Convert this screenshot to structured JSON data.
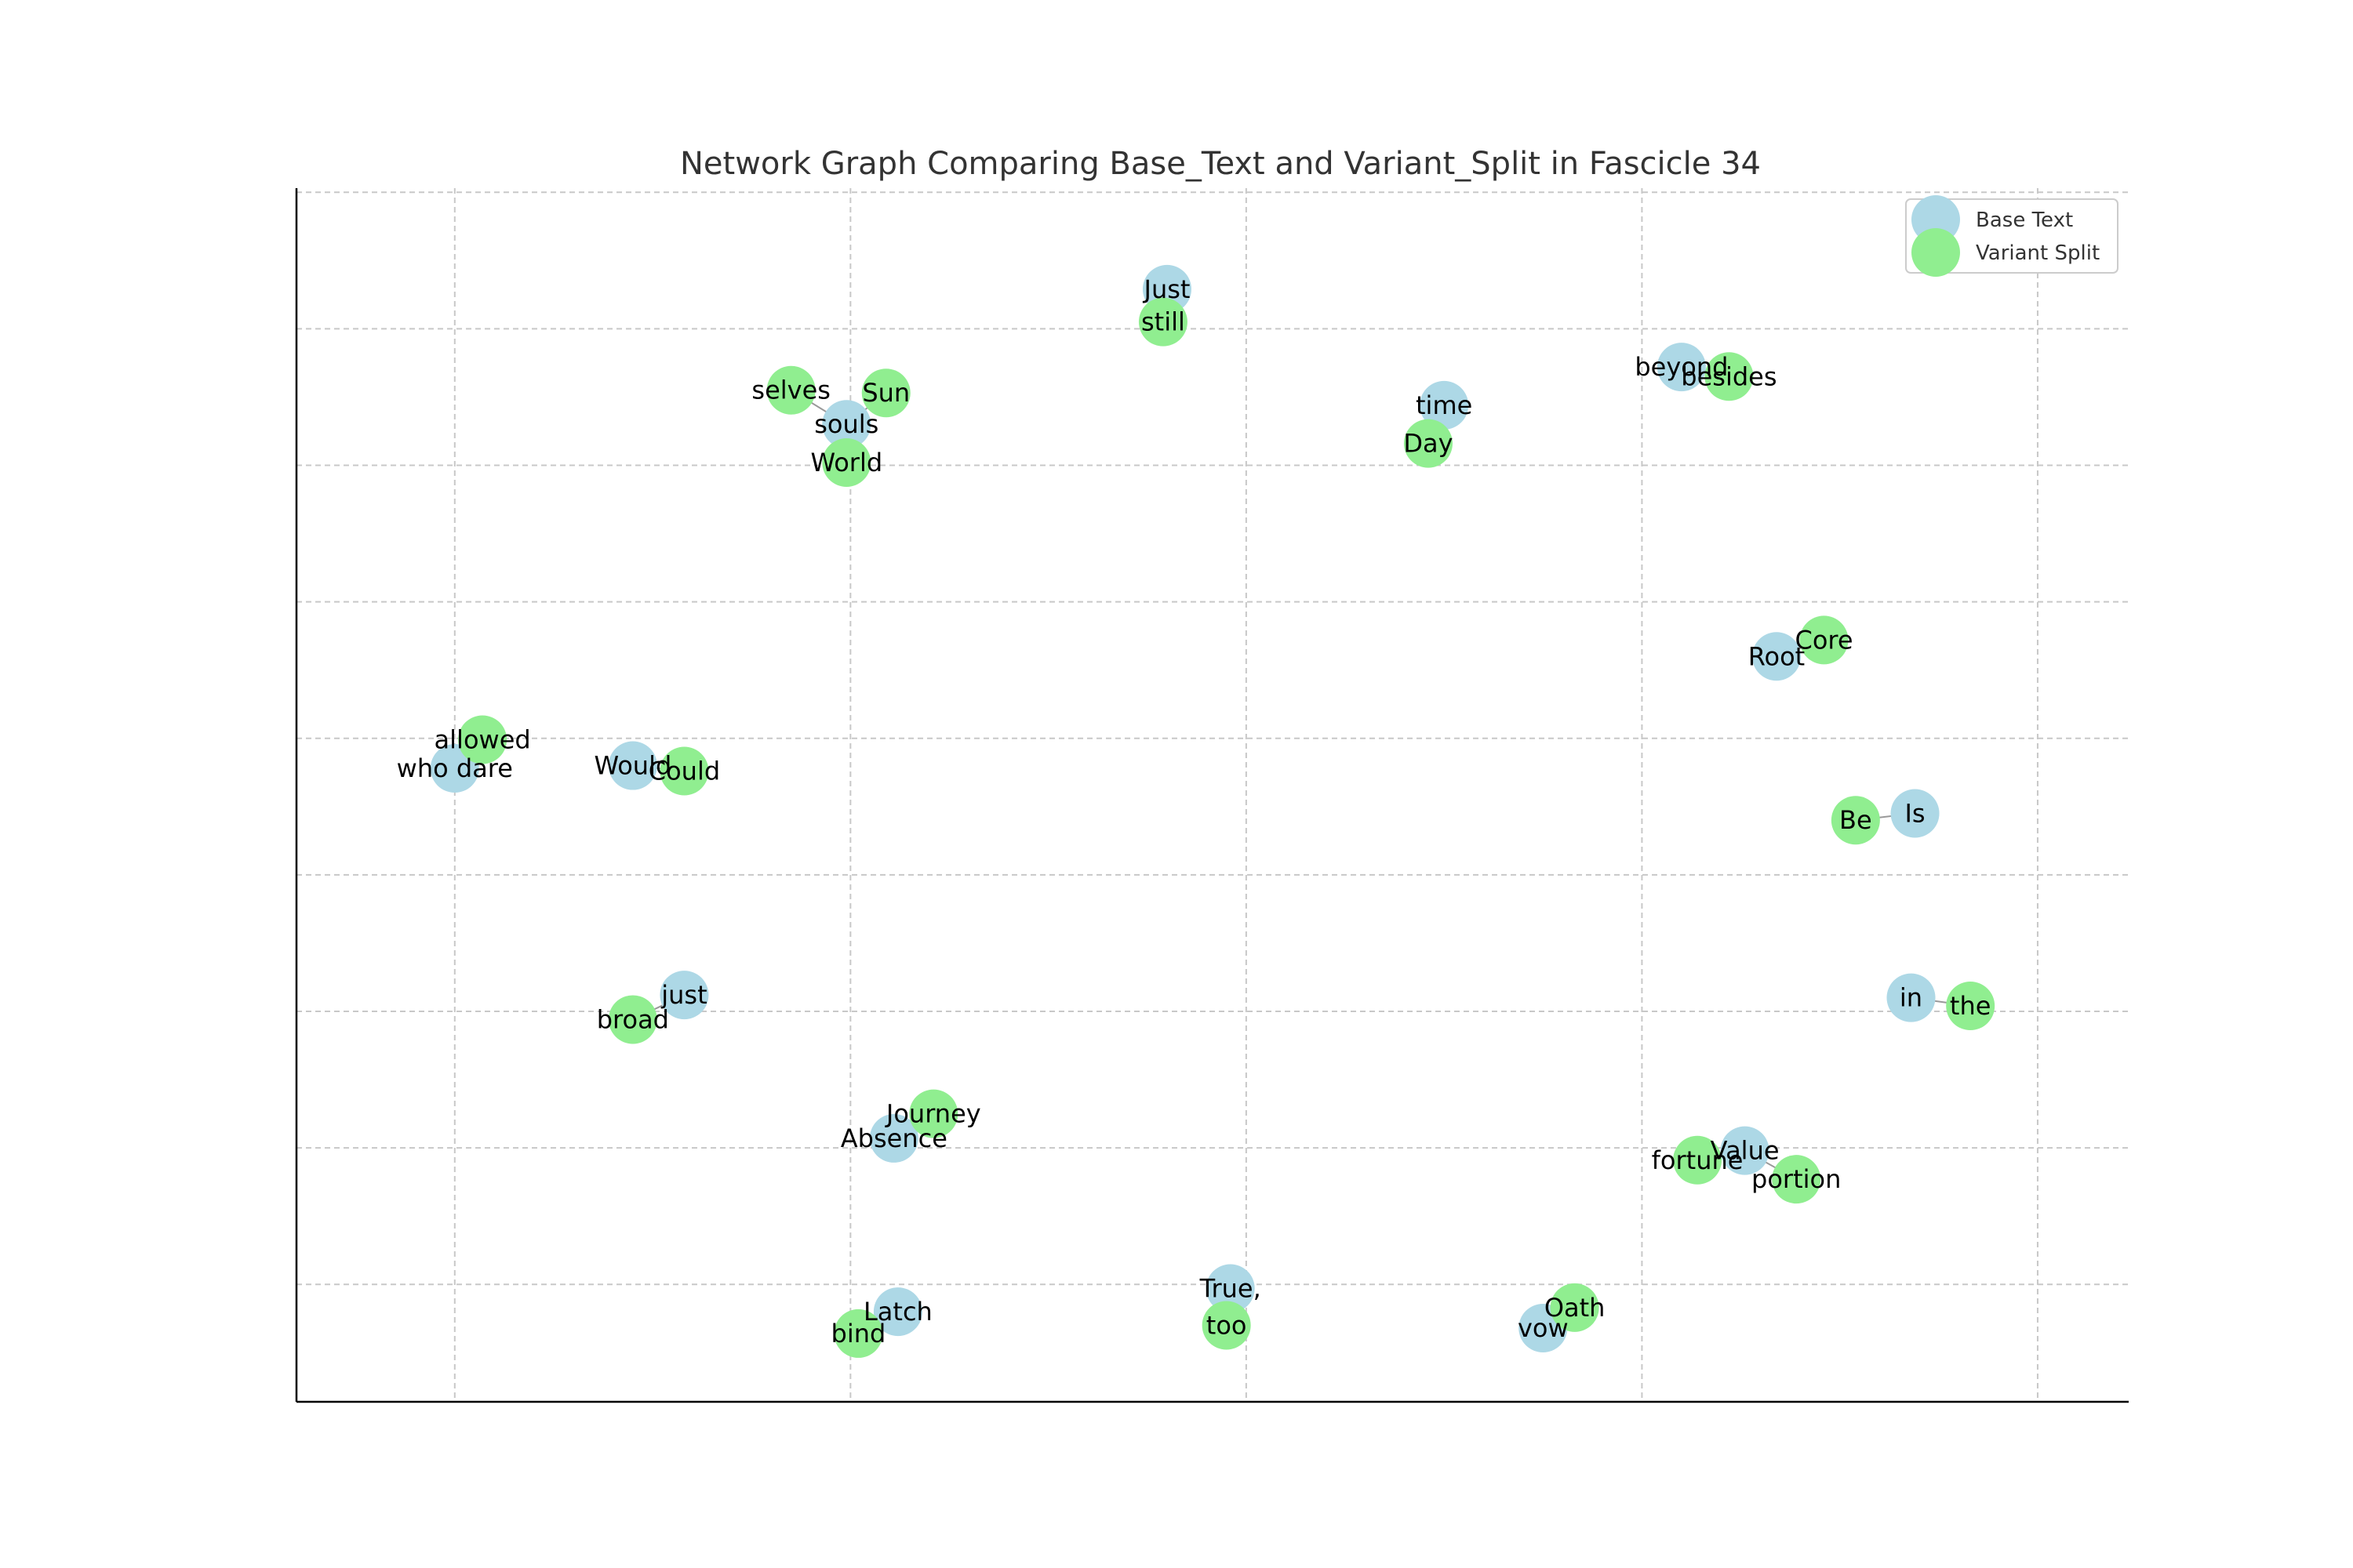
{
  "chart_data": {
    "type": "scatter",
    "title": "Network Graph Comparing Base_Text and Variant_Split in Fascicle 34",
    "xlabel": "",
    "ylabel": "",
    "xlim": [
      -0.4,
      4.23
    ],
    "ylim": [
      0.14,
      9.03
    ],
    "grid": true,
    "legend_position": "top-right",
    "series": [
      {
        "name": "Base Text",
        "color": "#add8e6",
        "points": [
          {
            "label": "Just",
            "x": 1.8,
            "y": 8.29
          },
          {
            "label": "souls",
            "x": 0.99,
            "y": 7.3
          },
          {
            "label": "time",
            "x": 2.5,
            "y": 7.44
          },
          {
            "label": "beyond",
            "x": 3.1,
            "y": 7.72
          },
          {
            "label": "Root",
            "x": 3.34,
            "y": 5.6
          },
          {
            "label": "who dare",
            "x": 0.0,
            "y": 4.78
          },
          {
            "label": "Would",
            "x": 0.45,
            "y": 4.8
          },
          {
            "label": "Is",
            "x": 3.69,
            "y": 4.45
          },
          {
            "label": "just",
            "x": 0.58,
            "y": 3.12
          },
          {
            "label": "in",
            "x": 3.68,
            "y": 3.1
          },
          {
            "label": "Absence",
            "x": 1.11,
            "y": 2.07
          },
          {
            "label": "Value",
            "x": 3.26,
            "y": 1.98
          },
          {
            "label": "True,",
            "x": 1.96,
            "y": 0.97
          },
          {
            "label": "Latch",
            "x": 1.12,
            "y": 0.8
          },
          {
            "label": "vow",
            "x": 2.75,
            "y": 0.68
          }
        ]
      },
      {
        "name": "Variant Split",
        "color": "#90ee90",
        "points": [
          {
            "label": "still",
            "x": 1.79,
            "y": 8.05
          },
          {
            "label": "selves",
            "x": 0.85,
            "y": 7.55
          },
          {
            "label": "Sun",
            "x": 1.09,
            "y": 7.53
          },
          {
            "label": "World",
            "x": 0.99,
            "y": 7.02
          },
          {
            "label": "Day",
            "x": 2.46,
            "y": 7.16
          },
          {
            "label": "besides",
            "x": 3.22,
            "y": 7.65
          },
          {
            "label": "Core",
            "x": 3.46,
            "y": 5.72
          },
          {
            "label": "allowed",
            "x": 0.07,
            "y": 4.99
          },
          {
            "label": "Could",
            "x": 0.58,
            "y": 4.76
          },
          {
            "label": "Be",
            "x": 3.54,
            "y": 4.4
          },
          {
            "label": "broad",
            "x": 0.45,
            "y": 2.94
          },
          {
            "label": "the",
            "x": 3.83,
            "y": 3.04
          },
          {
            "label": "Journey",
            "x": 1.21,
            "y": 2.25
          },
          {
            "label": "fortune",
            "x": 3.14,
            "y": 1.91
          },
          {
            "label": "portion",
            "x": 3.39,
            "y": 1.77
          },
          {
            "label": "too",
            "x": 1.95,
            "y": 0.7
          },
          {
            "label": "bind",
            "x": 1.02,
            "y": 0.64
          },
          {
            "label": "Oath",
            "x": 2.83,
            "y": 0.83
          }
        ]
      }
    ],
    "edges": [
      [
        "Just",
        "still"
      ],
      [
        "souls",
        "selves"
      ],
      [
        "souls",
        "Sun"
      ],
      [
        "souls",
        "World"
      ],
      [
        "time",
        "Day"
      ],
      [
        "beyond",
        "besides"
      ],
      [
        "Root",
        "Core"
      ],
      [
        "who dare",
        "allowed"
      ],
      [
        "Would",
        "Could"
      ],
      [
        "Is",
        "Be"
      ],
      [
        "just",
        "broad"
      ],
      [
        "in",
        "the"
      ],
      [
        "Absence",
        "Journey"
      ],
      [
        "Value",
        "fortune"
      ],
      [
        "Value",
        "portion"
      ],
      [
        "True,",
        "too"
      ],
      [
        "Latch",
        "bind"
      ],
      [
        "vow",
        "Oath"
      ]
    ]
  }
}
